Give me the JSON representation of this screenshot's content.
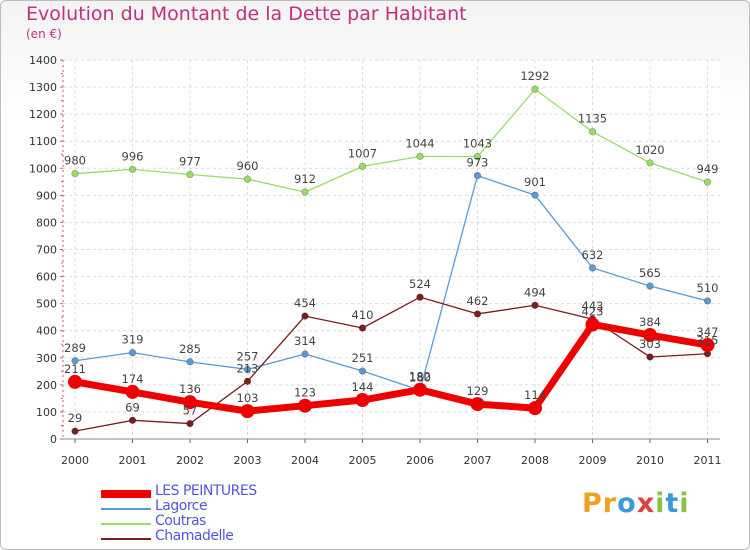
{
  "title": "Evolution du Montant de la Dette par Habitant",
  "unit": "(en €)",
  "logo": {
    "text": "Proxiti",
    "letter_colors": [
      "#f0a020",
      "#f0a020",
      "#3a9ad9",
      "#e04040",
      "#8bc34a",
      "#3a9ad9",
      "#8bc34a"
    ]
  },
  "chart_data": {
    "type": "line",
    "title": "Evolution du Montant de la Dette par Habitant",
    "subtitle": "(en €)",
    "x": [
      "2000",
      "2001",
      "2002",
      "2003",
      "2004",
      "2005",
      "2006",
      "2007",
      "2008",
      "2009",
      "2010",
      "2011"
    ],
    "ylim": [
      0,
      1400
    ],
    "yticks": [
      0,
      100,
      200,
      300,
      400,
      500,
      600,
      700,
      800,
      900,
      1000,
      1100,
      1200,
      1300,
      1400
    ],
    "grid": true,
    "legend_position": "bottom-left",
    "series": [
      {
        "name": "LES PEINTURES",
        "color": "#ee0000",
        "values": [
          211,
          174,
          136,
          103,
          123,
          144,
          182,
          129,
          114,
          423,
          384,
          347
        ]
      },
      {
        "name": "Lagorce",
        "color": "#5b9bd5",
        "values": [
          289,
          319,
          285,
          257,
          314,
          251,
          180,
          973,
          901,
          632,
          565,
          510
        ]
      },
      {
        "name": "Coutras",
        "color": "#99dd66",
        "values": [
          980,
          996,
          977,
          960,
          912,
          1007,
          1044,
          1043,
          1292,
          1135,
          1020,
          949
        ]
      },
      {
        "name": "Chamadelle",
        "color": "#7b1e1e",
        "values": [
          29,
          69,
          57,
          213,
          454,
          410,
          524,
          462,
          494,
          443,
          303,
          315
        ]
      }
    ]
  }
}
